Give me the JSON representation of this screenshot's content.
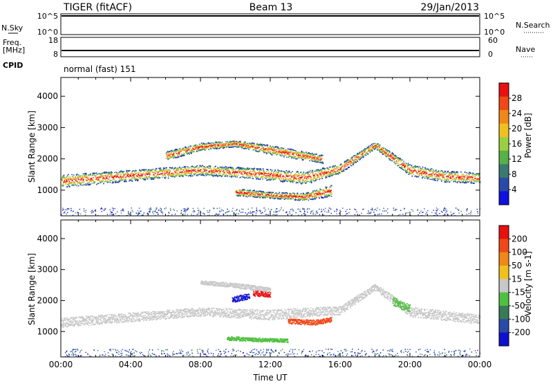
{
  "header": {
    "station": "TIGER (fitACF)",
    "beam": "Beam 13",
    "date": "29/Jan/2013"
  },
  "top_panels": {
    "nsky": {
      "left_label": "N.Sky",
      "left_ticks": [
        "10^5",
        "10^0"
      ],
      "right_ticks": [
        "10^5",
        "10^0"
      ],
      "right_label": "N.Search"
    },
    "freq": {
      "left_label_top": "Freq.",
      "left_label_bottom": "[MHz]",
      "left_ticks": [
        "18",
        "8"
      ],
      "right_ticks": [
        "60",
        "0"
      ],
      "right_label": "Nave"
    },
    "cpid": {
      "label": "CPID",
      "value": "normal (fast) 151"
    }
  },
  "chart_data": [
    {
      "type": "heatmap",
      "quantity": "power",
      "xlabel": "",
      "ylabel": "Slant Range [km]",
      "xlim": [
        0,
        24
      ],
      "ylim": [
        180,
        4600
      ],
      "yticks": [
        "1000",
        "2000",
        "3000",
        "4000"
      ],
      "colorbar_label": "Power [dB]",
      "colorbar_ticks": [
        "28",
        "24",
        "20",
        "16",
        "12",
        "8",
        "4"
      ],
      "colors": [
        "#1010e0",
        "#2a4aa8",
        "#3a7a70",
        "#58b048",
        "#9ad040",
        "#f0c020",
        "#f08818",
        "#f04818",
        "#e81010"
      ],
      "features": [
        {
          "name": "main band",
          "points": [
            [
              0,
              1300,
              200
            ],
            [
              4,
              1480,
              180
            ],
            [
              8,
              1650,
              160
            ],
            [
              11,
              1550,
              170
            ],
            [
              14,
              1400,
              200
            ],
            [
              16,
              1700,
              150
            ],
            [
              18,
              2450,
              110
            ],
            [
              20,
              1650,
              180
            ],
            [
              22,
              1450,
              180
            ],
            [
              24,
              1400,
              170
            ]
          ]
        },
        {
          "name": "upper band",
          "points": [
            [
              6,
              2100,
              150
            ],
            [
              8,
              2400,
              120
            ],
            [
              10,
              2500,
              100
            ],
            [
              12,
              2300,
              150
            ],
            [
              15,
              2000,
              130
            ]
          ]
        },
        {
          "name": "lower band",
          "points": [
            [
              10,
              950,
              120
            ],
            [
              12,
              850,
              100
            ],
            [
              14,
              800,
              120
            ],
            [
              15.5,
              1000,
              180
            ]
          ]
        }
      ]
    },
    {
      "type": "heatmap",
      "quantity": "velocity",
      "xlabel": "Time UT",
      "ylabel": "Slant Range [km]",
      "xlim": [
        0,
        24
      ],
      "ylim": [
        180,
        4600
      ],
      "xticks": [
        "00:00",
        "04:00",
        "08:00",
        "12:00",
        "16:00",
        "20:00",
        "00:00"
      ],
      "yticks": [
        "1000",
        "2000",
        "3000",
        "4000"
      ],
      "colorbar_label": "Velocity [m s-1]",
      "colorbar_ticks": [
        "200",
        "100",
        "50",
        "15",
        "-15",
        "-50",
        "-100",
        "-200"
      ],
      "colors": [
        "#1010d0",
        "#2a4aa8",
        "#3a7a58",
        "#50c040",
        "#c8c8c8",
        "#f0c020",
        "#f08818",
        "#f04818",
        "#e81010"
      ],
      "features": [
        {
          "name": "ground scatter band",
          "color": "#c8c8c8",
          "points": [
            [
              0,
              1300,
              150
            ],
            [
              4,
              1480,
              150
            ],
            [
              8,
              1650,
              140
            ],
            [
              12,
              1550,
              160
            ],
            [
              16,
              1700,
              140
            ],
            [
              18,
              2450,
              100
            ],
            [
              20,
              1650,
              160
            ],
            [
              24,
              1400,
              150
            ]
          ]
        },
        {
          "name": "upper patch",
          "color": "#c8c8c8",
          "points": [
            [
              8,
              2600,
              60
            ],
            [
              10,
              2500,
              80
            ],
            [
              12,
              2350,
              80
            ]
          ]
        },
        {
          "name": "blue patch",
          "color": "#1010d0",
          "points": [
            [
              9.8,
              2050,
              100
            ],
            [
              10.8,
              2150,
              90
            ]
          ]
        },
        {
          "name": "red patch",
          "color": "#e81010",
          "points": [
            [
              11,
              2250,
              90
            ],
            [
              12,
              2200,
              80
            ]
          ]
        },
        {
          "name": "orange red patch",
          "color": "#f04818",
          "points": [
            [
              13,
              1350,
              80
            ],
            [
              14.5,
              1300,
              90
            ],
            [
              15.5,
              1400,
              80
            ]
          ]
        },
        {
          "name": "green patch",
          "color": "#50c040",
          "points": [
            [
              9.5,
              800,
              70
            ],
            [
              11,
              750,
              60
            ],
            [
              13,
              720,
              60
            ]
          ]
        },
        {
          "name": "green post-midday",
          "color": "#50c040",
          "points": [
            [
              19,
              2000,
              140
            ],
            [
              20,
              1750,
              120
            ]
          ]
        }
      ]
    }
  ]
}
